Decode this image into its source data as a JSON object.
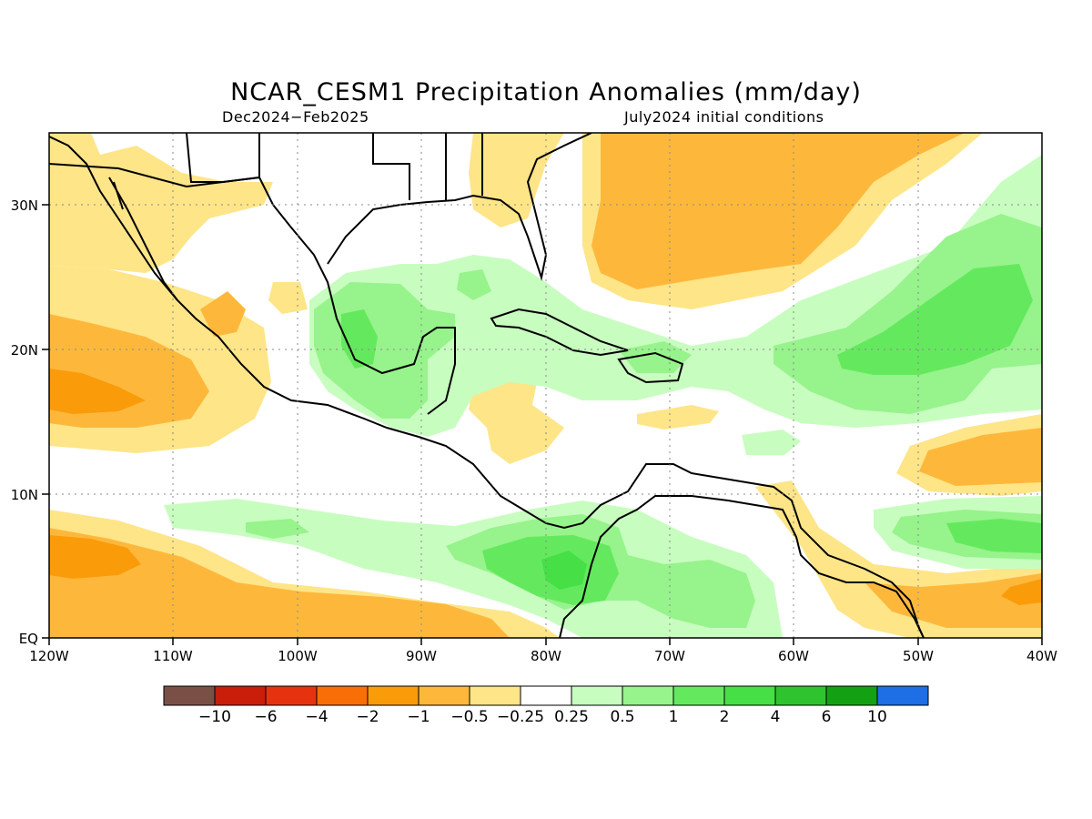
{
  "title": "NCAR_CESM1 Precipitation Anomalies (mm/day)",
  "period": "Dec2024−Feb2025",
  "initial_conditions": "July2024 initial conditions",
  "map": {
    "lon_range": [
      -120,
      -40
    ],
    "lat_range": [
      0,
      35
    ],
    "x_tick_labels": [
      "120W",
      "110W",
      "100W",
      "90W",
      "80W",
      "70W",
      "60W",
      "50W",
      "40W"
    ],
    "y_tick_labels": [
      "EQ",
      "10N",
      "20N",
      "30N"
    ],
    "grid": true
  },
  "colorbar": {
    "colors": [
      "#7a5046",
      "#c81e0a",
      "#e6330f",
      "#fa6e07",
      "#fa9b0a",
      "#fdb83c",
      "#fee588",
      "#ffffff",
      "#c8fdc0",
      "#97f38b",
      "#64e95e",
      "#46e046",
      "#2fc32f",
      "#13a013",
      "#1e6ee6"
    ],
    "labels": [
      "−10",
      "−6",
      "−4",
      "−2",
      "−1",
      "−0.5",
      "−0.25",
      "0.25",
      "0.5",
      "1",
      "2",
      "4",
      "6",
      "10"
    ]
  }
}
